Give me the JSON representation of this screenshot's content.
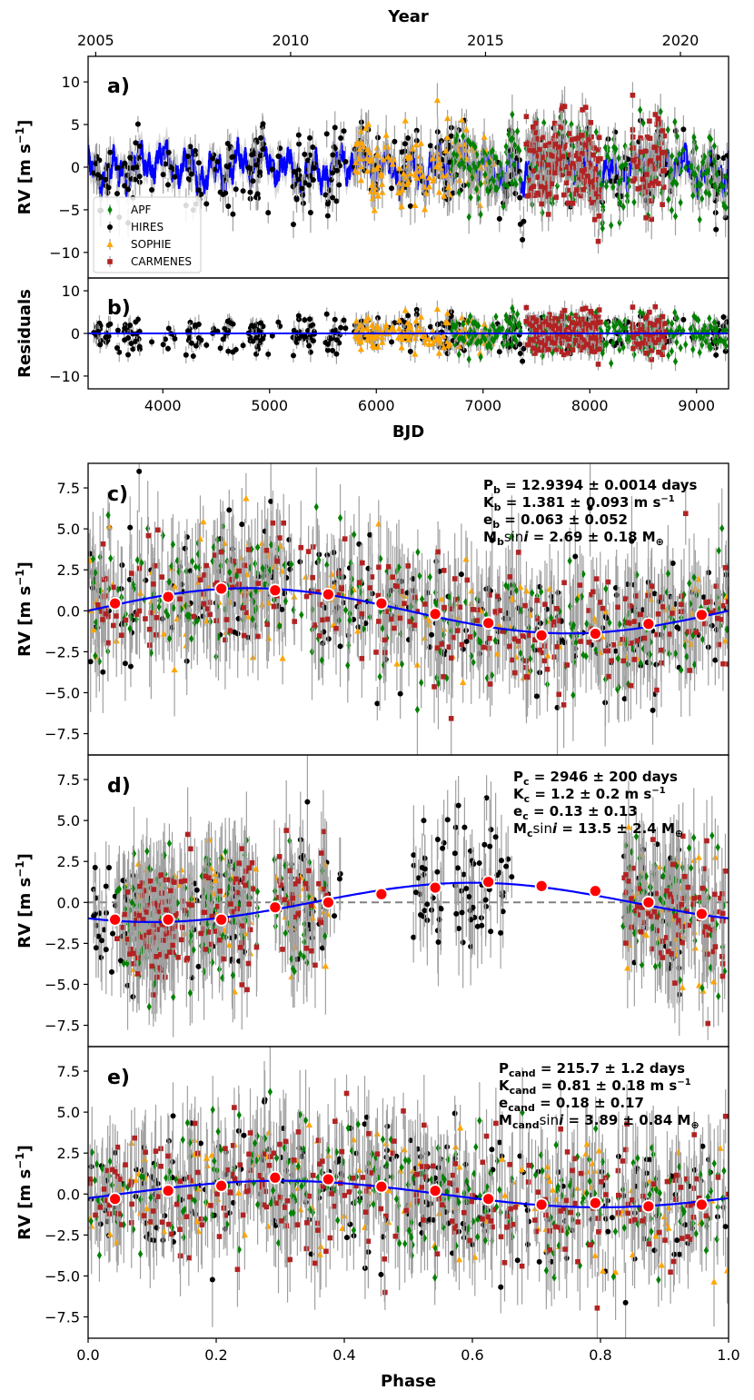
{
  "colors": {
    "APF": "#008000",
    "HIRES": "#000000",
    "SOPHIE": "#FFA500",
    "CARMENES": "#B22222",
    "model": "#0000FF",
    "errorbar": "#A0A0A0",
    "binned_fill": "#FF0000"
  },
  "chart_data": [
    {
      "panel": "a)",
      "type": "scatter",
      "ylabel": "RV [m s⁻¹]",
      "xlim": [
        3300,
        9300
      ],
      "ylim": [
        -13,
        13
      ],
      "yticks": [
        -10,
        -5,
        0,
        5,
        10
      ],
      "top_axis": {
        "label": "Year",
        "ticks": [
          2005,
          2010,
          2015,
          2020
        ],
        "tick_bjd": [
          3371,
          5197,
          7023,
          8849
        ]
      },
      "legend": {
        "placement": "lower-left",
        "entries": [
          "APF",
          "HIRES",
          "SOPHIE",
          "CARMENES"
        ]
      },
      "model": "GP + Keplerian (blue band)",
      "series_ranges": {
        "HIRES": [
          [
            3300,
            6900
          ],
          [
            7000,
            9250
          ]
        ],
        "SOPHIE": [
          [
            5800,
            7100
          ]
        ],
        "APF": [
          [
            6700,
            9280
          ]
        ],
        "CARMENES": [
          [
            7400,
            8100
          ],
          [
            8400,
            8700
          ]
        ]
      }
    },
    {
      "panel": "b)",
      "type": "scatter",
      "ylabel": "Residuals",
      "xlabel": "BJD",
      "xlim": [
        3300,
        9300
      ],
      "ylim": [
        -13,
        13
      ],
      "xticks": [
        4000,
        5000,
        6000,
        7000,
        8000,
        9000
      ],
      "yticks": [
        -10,
        0,
        10
      ],
      "model": "zero line"
    },
    {
      "panel": "c)",
      "type": "scatter",
      "ylabel": "RV [m s⁻¹]",
      "xlim": [
        0.0,
        1.0
      ],
      "ylim": [
        -8.8,
        9.0
      ],
      "yticks": [
        -7.5,
        -5.0,
        -2.5,
        0.0,
        2.5,
        5.0,
        7.5
      ],
      "model": {
        "amplitude": 1.381,
        "phase_shift": 0.0
      },
      "binned": {
        "x": [
          0.042,
          0.125,
          0.208,
          0.292,
          0.375,
          0.458,
          0.542,
          0.625,
          0.708,
          0.792,
          0.875,
          0.958
        ],
        "y": [
          0.45,
          0.85,
          1.35,
          1.25,
          1.0,
          0.45,
          -0.2,
          -0.75,
          -1.5,
          -1.4,
          -0.8,
          -0.25
        ]
      },
      "annotation": {
        "line1": {
          "base": "P",
          "sub": "b",
          "text": " = 12.9394 ± 0.0014 days"
        },
        "line2": {
          "base": "K",
          "sub": "b",
          "text": " = 1.381 ± 0.093 m s",
          "sup": "−1"
        },
        "line3": {
          "base": "e",
          "sub": "b",
          "text": " = 0.063 ± 0.052"
        },
        "line4": {
          "base": "M",
          "sub": "b",
          "mid": "sin",
          "italic": "i",
          "text": " = 2.69 ± 0.18 M",
          "tail": "⊕"
        }
      }
    },
    {
      "panel": "d)",
      "type": "scatter",
      "ylabel": "RV [m s⁻¹]",
      "xlim": [
        0.0,
        1.0
      ],
      "ylim": [
        -8.8,
        9.0
      ],
      "yticks": [
        -7.5,
        -5.0,
        -2.5,
        0.0,
        2.5,
        5.0,
        7.5
      ],
      "model": {
        "amplitude": 1.2,
        "phase_shift": 0.35
      },
      "binned": {
        "x": [
          0.042,
          0.125,
          0.208,
          0.292,
          0.375,
          0.458,
          0.542,
          0.625,
          0.708,
          0.792,
          0.875,
          0.958
        ],
        "y": [
          -1.05,
          -1.05,
          -1.05,
          -0.3,
          0.0,
          0.5,
          0.9,
          1.25,
          1.0,
          0.7,
          0.0,
          -0.7
        ]
      },
      "annotation": {
        "line1": {
          "base": "P",
          "sub": "c",
          "text": " = 2946 ± 200 days"
        },
        "line2": {
          "base": "K",
          "sub": "c",
          "text": " = 1.2 ± 0.2 m s",
          "sup": "−1"
        },
        "line3": {
          "base": "e",
          "sub": "c",
          "text": " = 0.13 ± 0.13"
        },
        "line4": {
          "base": "M",
          "sub": "c",
          "mid": "sin",
          "italic": "i",
          "text": " = 13.5 ± 2.4 M",
          "tail": "⊕"
        }
      }
    },
    {
      "panel": "e)",
      "type": "scatter",
      "ylabel": "RV [m s⁻¹]",
      "xlabel": "Phase",
      "xlim": [
        0.0,
        1.0
      ],
      "ylim": [
        -8.8,
        9.0
      ],
      "xticks": [
        0.0,
        0.2,
        0.4,
        0.6,
        0.8,
        1.0
      ],
      "yticks": [
        -7.5,
        -5.0,
        -2.5,
        0.0,
        2.5,
        5.0,
        7.5
      ],
      "model": {
        "amplitude": 0.81,
        "phase_shift": 0.05
      },
      "binned": {
        "x": [
          0.042,
          0.125,
          0.208,
          0.292,
          0.375,
          0.458,
          0.542,
          0.625,
          0.708,
          0.792,
          0.875,
          0.958
        ],
        "y": [
          -0.3,
          0.2,
          0.5,
          1.0,
          0.9,
          0.45,
          0.2,
          -0.3,
          -0.65,
          -0.55,
          -0.75,
          -0.65
        ]
      },
      "annotation": {
        "line1": {
          "base": "P",
          "sub": "cand",
          "text": " = 215.7 ± 1.2 days"
        },
        "line2": {
          "base": "K",
          "sub": "cand",
          "text": " = 0.81 ± 0.18 m s",
          "sup": "−1"
        },
        "line3": {
          "base": "e",
          "sub": "cand",
          "text": " = 0.18 ± 0.17"
        },
        "line4": {
          "base": "M",
          "sub": "cand",
          "mid": "sin",
          "italic": "i",
          "text": " = 3.89 ± 0.84 M",
          "tail": "⊕"
        }
      }
    }
  ]
}
